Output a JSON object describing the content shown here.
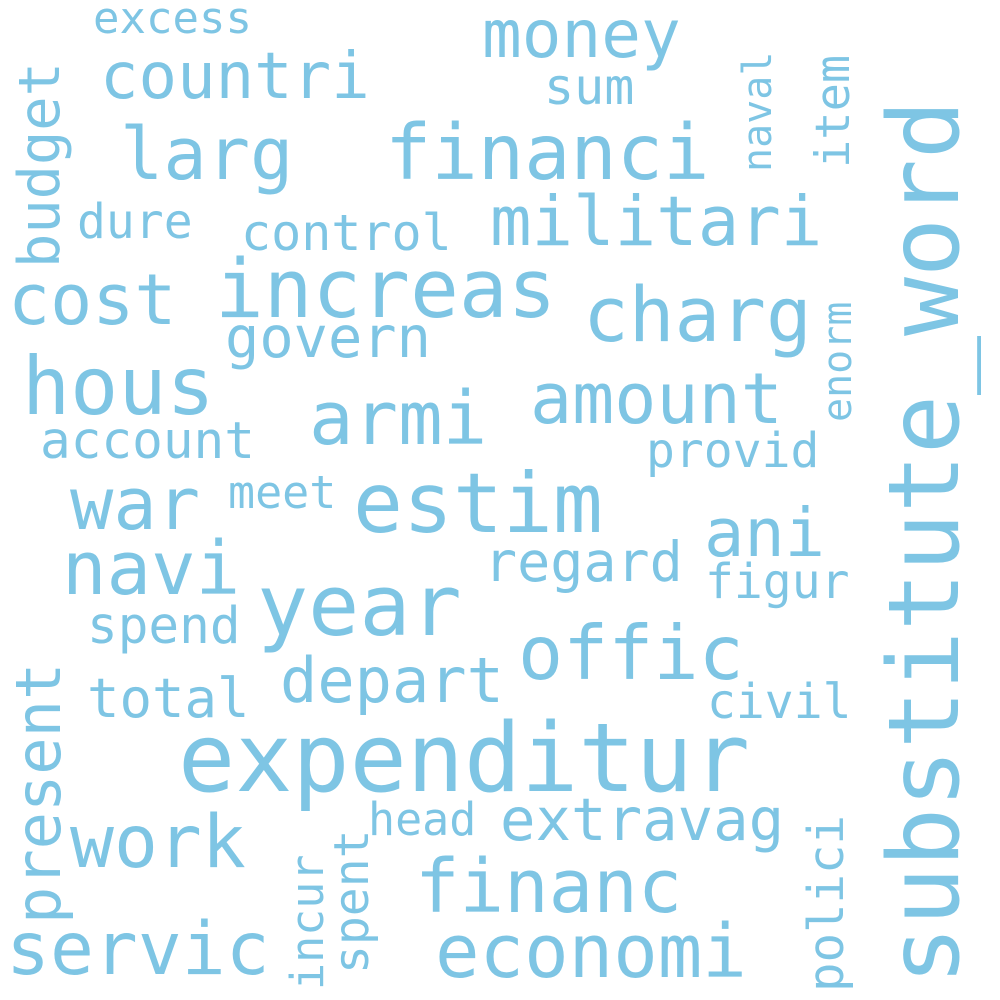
{
  "color": "#7ec5e4",
  "words": [
    "excess",
    "money",
    "countri",
    "sum",
    "naval",
    "item",
    "larg",
    "financi",
    "budget",
    "dure",
    "control",
    "militari",
    "increas",
    "cost",
    "charg",
    "govern",
    "hous",
    "armi",
    "amount",
    "enorm",
    "account",
    "provid",
    "war",
    "meet",
    "estim",
    "ani",
    "navi",
    "regard",
    "figur",
    "year",
    "spend",
    "present",
    "offic",
    "depart",
    "total",
    "civil",
    "expenditur",
    "head",
    "extravag",
    "work",
    "spent",
    "incur",
    "polici",
    "financ",
    "servic",
    "economi",
    "substitute_word"
  ]
}
